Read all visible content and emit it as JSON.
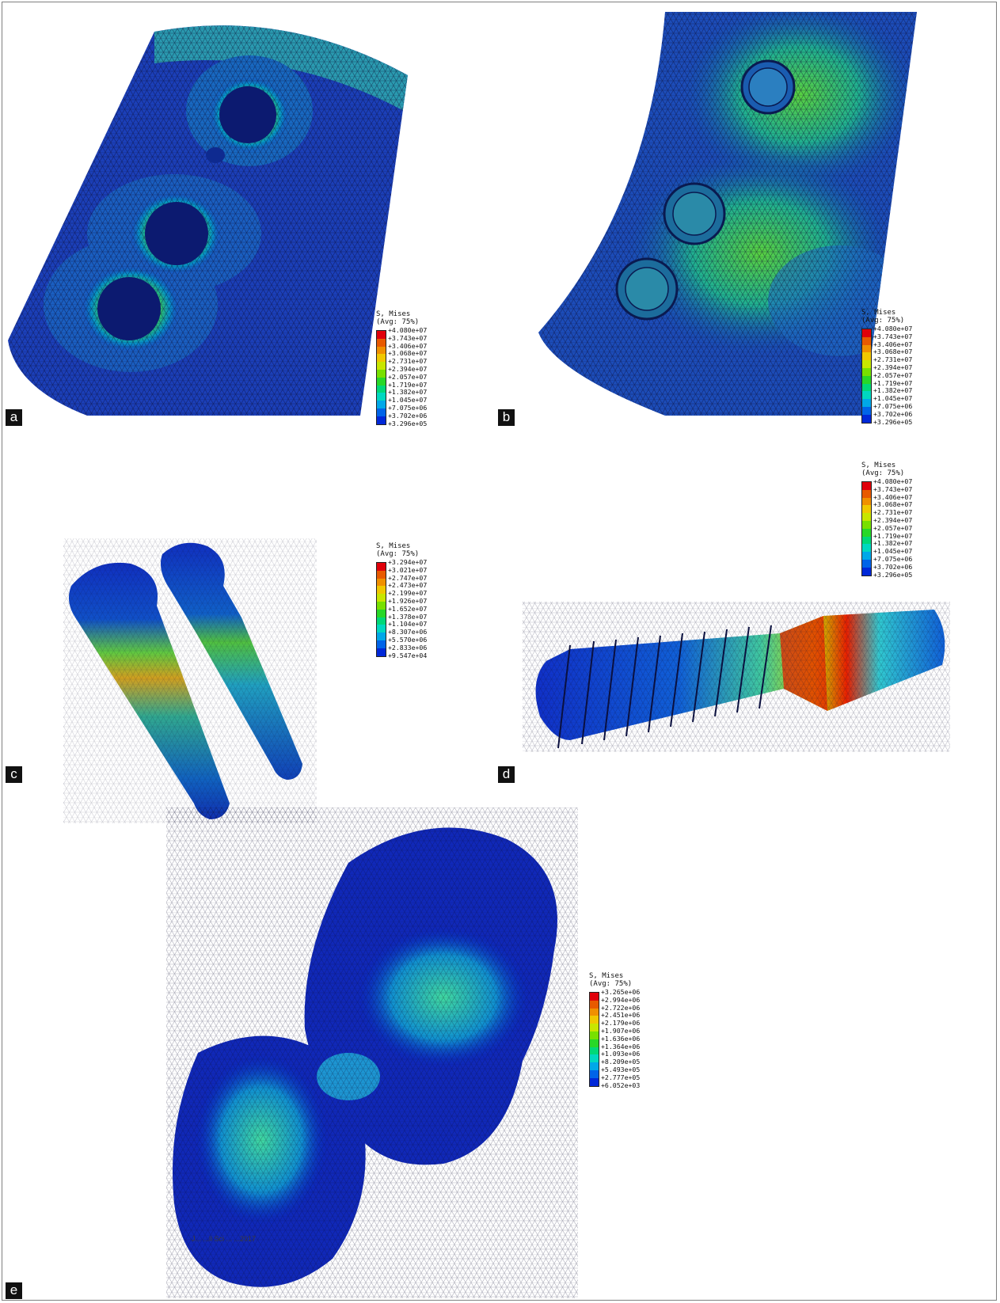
{
  "panels": [
    {
      "label": "a",
      "legend": {
        "title": "S, Mises\n(Avg: 75%)",
        "values": [
          "+4.080e+07",
          "+3.743e+07",
          "+3.406e+07",
          "+3.068e+07",
          "+2.731e+07",
          "+2.394e+07",
          "+2.057e+07",
          "+1.719e+07",
          "+1.382e+07",
          "+1.045e+07",
          "+7.075e+06",
          "+3.702e+06",
          "+3.296e+05"
        ]
      }
    },
    {
      "label": "b",
      "legend": {
        "title": "S, Mises\n(Avg: 75%)",
        "values": [
          "+4.080e+07",
          "+3.743e+07",
          "+3.406e+07",
          "+3.068e+07",
          "+2.731e+07",
          "+2.394e+07",
          "+2.057e+07",
          "+1.719e+07",
          "+1.382e+07",
          "+1.045e+07",
          "+7.075e+06",
          "+3.702e+06",
          "+3.296e+05"
        ]
      }
    },
    {
      "label": "c",
      "legend": {
        "title": "S, Mises\n(Avg: 75%)",
        "values": [
          "+3.294e+07",
          "+3.021e+07",
          "+2.747e+07",
          "+2.473e+07",
          "+2.199e+07",
          "+1.926e+07",
          "+1.652e+07",
          "+1.378e+07",
          "+1.104e+07",
          "+8.307e+06",
          "+5.570e+06",
          "+2.833e+06",
          "+9.547e+04"
        ]
      }
    },
    {
      "label": "d",
      "legend": {
        "title": "S, Mises\n(Avg: 75%)",
        "values": [
          "+4.080e+07",
          "+3.743e+07",
          "+3.406e+07",
          "+3.068e+07",
          "+2.731e+07",
          "+2.394e+07",
          "+2.057e+07",
          "+1.719e+07",
          "+1.382e+07",
          "+1.045e+07",
          "+7.075e+06",
          "+3.702e+06",
          "+3.296e+05"
        ]
      }
    },
    {
      "label": "e",
      "legend": {
        "title": "S, Mises\n(Avg: 75%)",
        "values": [
          "+3.265e+06",
          "+2.994e+06",
          "+2.722e+06",
          "+2.451e+06",
          "+2.179e+06",
          "+1.907e+06",
          "+1.636e+06",
          "+1.364e+06",
          "+1.093e+06",
          "+8.209e+05",
          "+5.493e+05",
          "+2.777e+05",
          "+6.052e+03"
        ]
      }
    }
  ],
  "colormap": [
    "#e0000a",
    "#e85a00",
    "#f09000",
    "#f0c800",
    "#c8e600",
    "#78e000",
    "#28d828",
    "#00d878",
    "#00d8c0",
    "#00a8e8",
    "#0064e8",
    "#0028d8",
    "#0000c8"
  ],
  "watermark": "J... ...ll Sci ... ...2017"
}
